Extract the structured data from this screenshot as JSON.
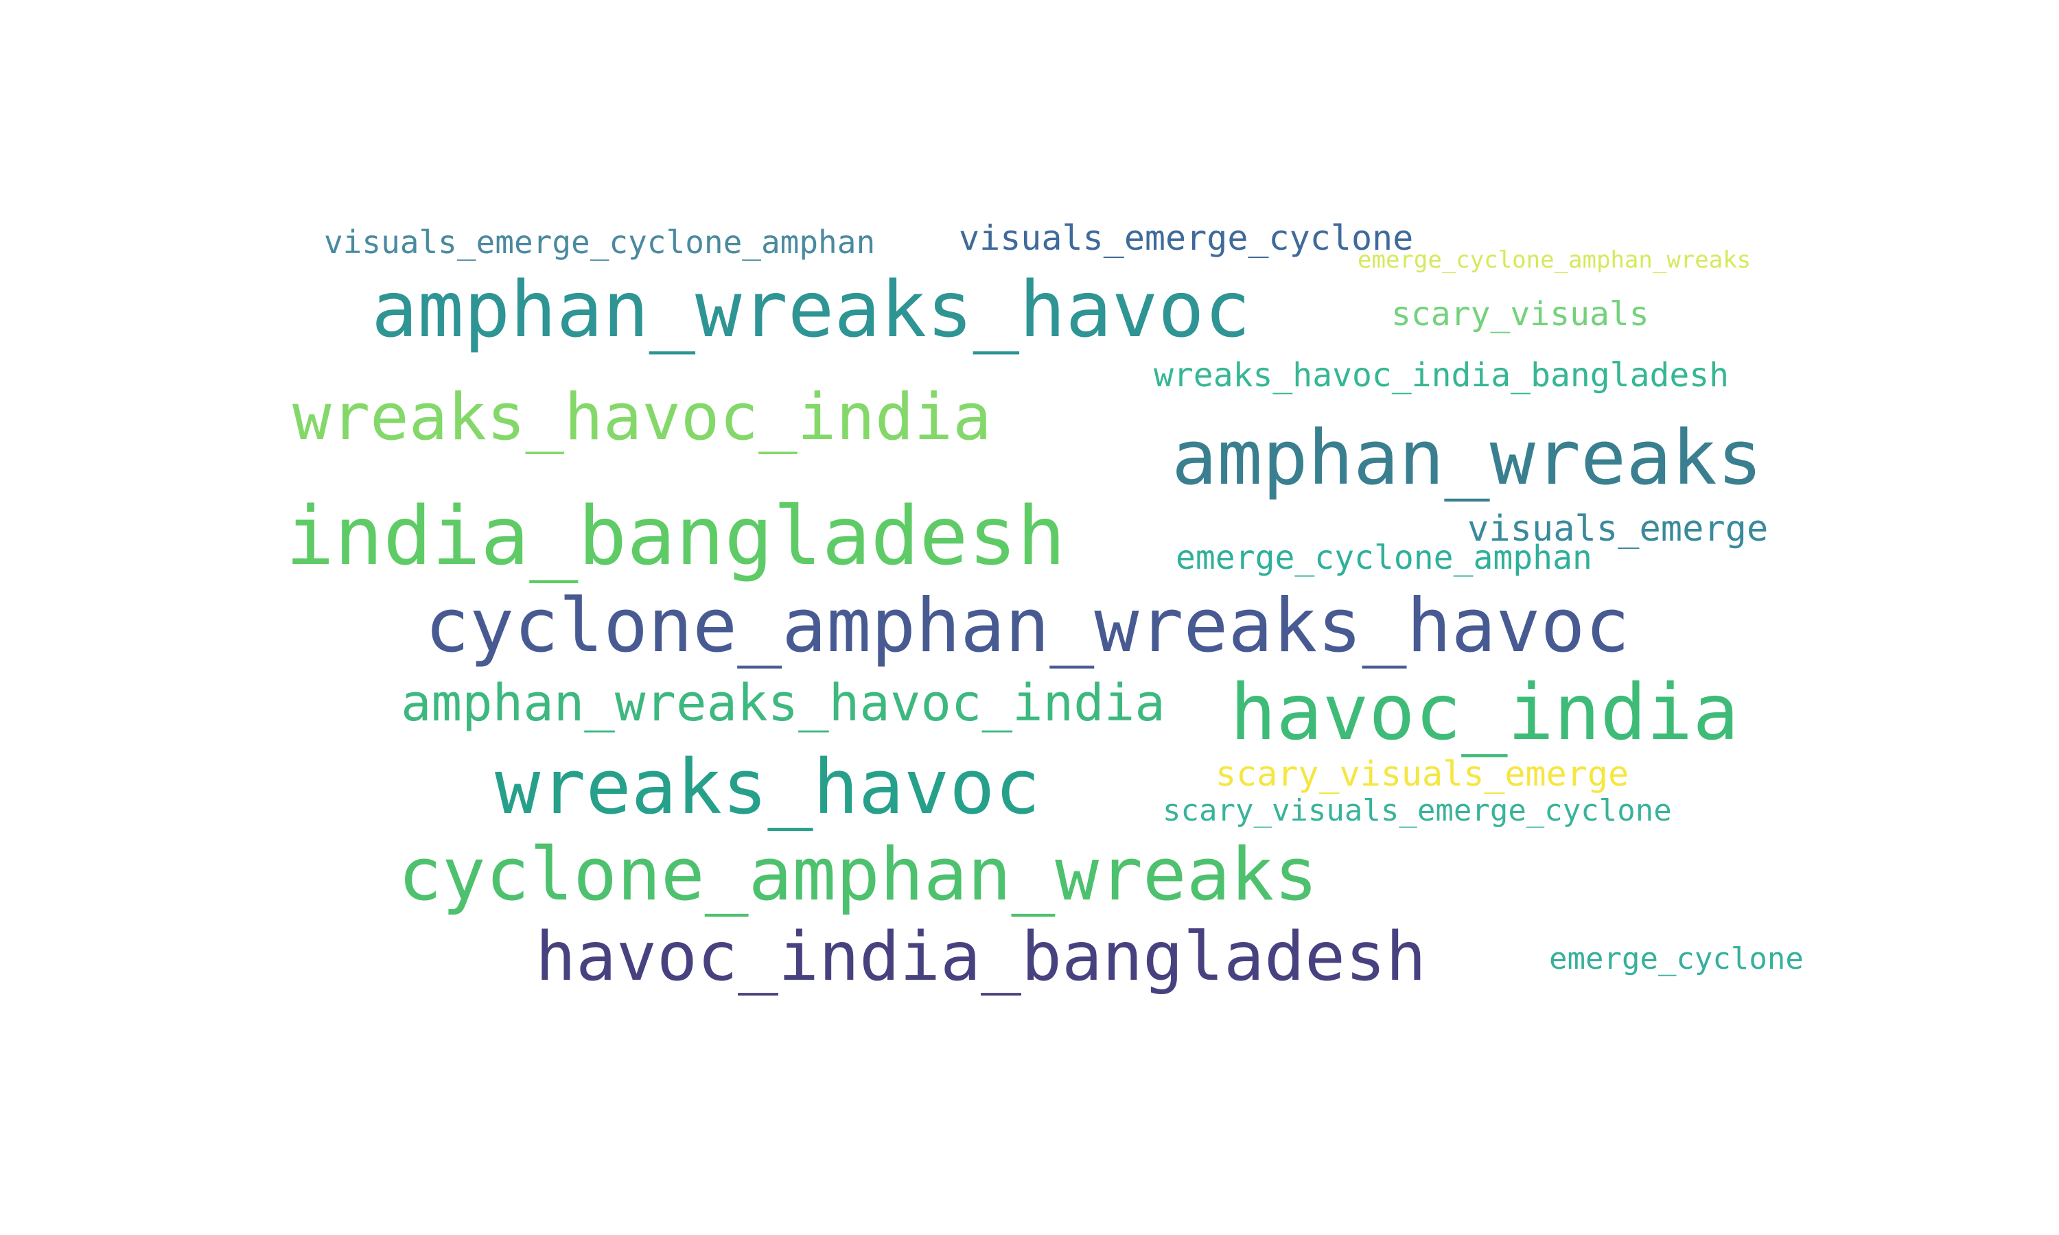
{
  "wordcloud": {
    "words": [
      {
        "text": "visuals_emerge_cyclone_amphan",
        "color": "#4a8aa0"
      },
      {
        "text": "visuals_emerge_cyclone",
        "color": "#3f6a9a"
      },
      {
        "text": "emerge_cyclone_amphan_wreaks",
        "color": "#d6e95a"
      },
      {
        "text": "amphan_wreaks_havoc",
        "color": "#2e9494"
      },
      {
        "text": "scary_visuals",
        "color": "#74d17c"
      },
      {
        "text": "wreaks_havoc_india_bangladesh",
        "color": "#35b694"
      },
      {
        "text": "wreaks_havoc_india",
        "color": "#84d86a"
      },
      {
        "text": "amphan_wreaks",
        "color": "#3a7f8f"
      },
      {
        "text": "india_bangladesh",
        "color": "#5ecb66"
      },
      {
        "text": "visuals_emerge",
        "color": "#3a8a9c"
      },
      {
        "text": "emerge_cyclone_amphan",
        "color": "#2fb09a"
      },
      {
        "text": "cyclone_amphan_wreaks_havoc",
        "color": "#485a92"
      },
      {
        "text": "amphan_wreaks_havoc_india",
        "color": "#3db87f"
      },
      {
        "text": "havoc_india",
        "color": "#3fbb78"
      },
      {
        "text": "wreaks_havoc",
        "color": "#26a08a"
      },
      {
        "text": "scary_visuals_emerge",
        "color": "#f5e640"
      },
      {
        "text": "scary_visuals_emerge_cyclone",
        "color": "#39b39a"
      },
      {
        "text": "cyclone_amphan_wreaks",
        "color": "#4ec16e"
      },
      {
        "text": "havoc_india_bangladesh",
        "color": "#47427f"
      },
      {
        "text": "emerge_cyclone",
        "color": "#36b09c"
      }
    ]
  }
}
